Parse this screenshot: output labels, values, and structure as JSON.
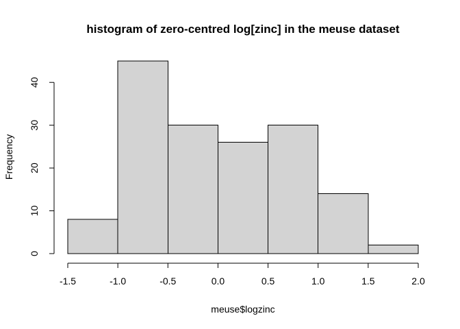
{
  "chart_data": {
    "type": "bar",
    "title": "histogram of zero-centred log[zinc] in the meuse dataset",
    "xlabel": "meuse$logzinc",
    "ylabel": "Frequency",
    "bins": [
      {
        "from": -1.5,
        "to": -1.0,
        "count": 8
      },
      {
        "from": -1.0,
        "to": -0.5,
        "count": 45
      },
      {
        "from": -0.5,
        "to": 0.0,
        "count": 30
      },
      {
        "from": 0.0,
        "to": 0.5,
        "count": 26
      },
      {
        "from": 0.5,
        "to": 1.0,
        "count": 30
      },
      {
        "from": 1.0,
        "to": 1.5,
        "count": 14
      },
      {
        "from": 1.5,
        "to": 2.0,
        "count": 2
      }
    ],
    "xlim": [
      -1.5,
      2.0
    ],
    "ylim": [
      0,
      45
    ],
    "x_ticks": [
      -1.5,
      -1.0,
      -0.5,
      0.0,
      0.5,
      1.0,
      1.5,
      2.0
    ],
    "x_tick_labels": [
      "-1.5",
      "-1.0",
      "-0.5",
      "0.0",
      "0.5",
      "1.0",
      "1.5",
      "2.0"
    ],
    "y_ticks": [
      0,
      10,
      20,
      30,
      40
    ],
    "y_tick_labels": [
      "0",
      "10",
      "20",
      "30",
      "40"
    ],
    "bar_fill": "#d3d3d3",
    "bar_stroke": "#000000",
    "grid": false
  }
}
